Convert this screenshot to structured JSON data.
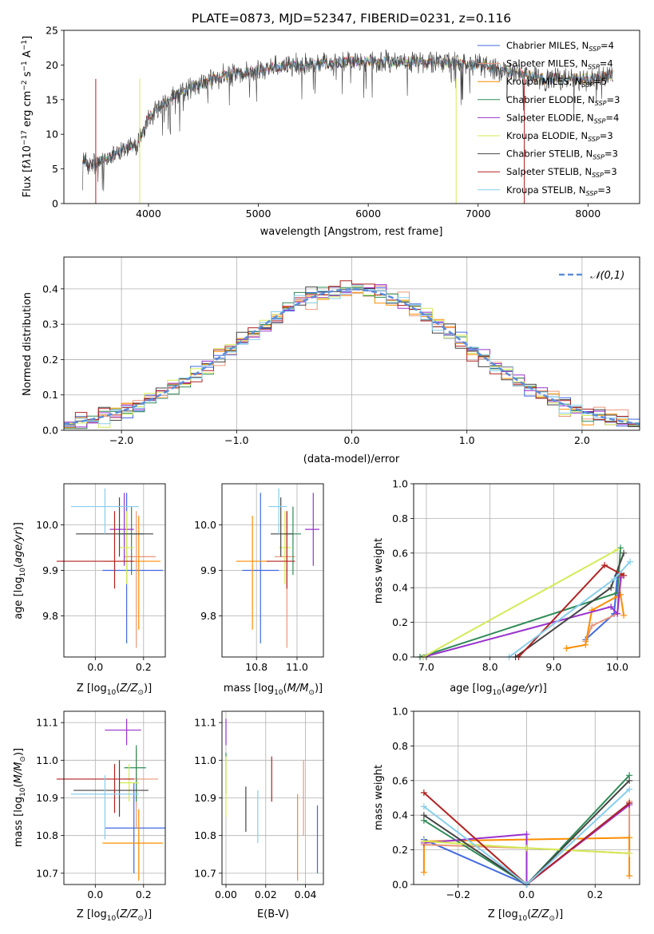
{
  "title": "PLATE=0873, MJD=52347, FIBERID=0231, z=0.116",
  "colors": {
    "chabrier_miles": "#4169e1",
    "salpeter_miles": "#e9967a",
    "kroupa_miles": "#ff8c00",
    "chabrier_elodie": "#2e8b57",
    "salpeter_elodie": "#9932cc",
    "kroupa_elodie": "#d4ea55",
    "chabrier_stelib": "#444444",
    "salpeter_stelib": "#b22222",
    "kroupa_stelib": "#87ceeb",
    "normal": "#5b8ddb",
    "grid": "#b0b0b0"
  },
  "legend": {
    "spectrum": [
      "Chabrier MILES, N_SSP=4",
      "Salpeter MILES, N_SSP=4",
      "Kroupa MILES, N_SSP=5",
      "Chabrier ELODIE, N_SSP=3",
      "Salpeter ELODIE, N_SSP=4",
      "Kroupa ELODIE, N_SSP=3",
      "Chabrier STELIB, N_SSP=3",
      "Salpeter STELIB, N_SSP=3",
      "Kroupa STELIB, N_SSP=3"
    ],
    "histogram": "𝒩(0,1)"
  },
  "chart_data": [
    {
      "type": "line",
      "title": "PLATE=0873, MJD=52347, FIBERID=0231, z=0.116",
      "xlabel": "wavelength [Angstrom, rest frame]",
      "ylabel": "Flux [f_λ 10^-17 erg cm^-2 s^-1 A^-1]",
      "xlim": [
        3230,
        8470
      ],
      "ylim": [
        0,
        25
      ],
      "xticks": [
        4000,
        5000,
        6000,
        7000,
        8000
      ],
      "yticks": [
        0,
        5,
        10,
        15,
        20,
        25
      ],
      "legend_position": "right",
      "spectrum_shape": {
        "x": [
          3400,
          3500,
          3600,
          3800,
          3900,
          4000,
          4100,
          4300,
          4500,
          4700,
          4900,
          5100,
          5300,
          5500,
          5800,
          6000,
          6300,
          6600,
          7000,
          7300,
          7600,
          8000,
          8200
        ],
        "y": [
          6,
          5.5,
          6.5,
          8,
          8.5,
          12.5,
          14,
          16,
          17.5,
          18.5,
          19,
          19.5,
          20,
          20,
          20.5,
          20.5,
          20.5,
          20.5,
          20,
          19,
          18,
          18,
          18.5
        ]
      }
    },
    {
      "type": "bar",
      "xlabel": "(data-model)/error",
      "ylabel": "Normed distribution",
      "xlim": [
        -2.5,
        2.5
      ],
      "ylim": [
        0,
        0.49
      ],
      "xticks": [
        -2,
        -1,
        0,
        1,
        2
      ],
      "yticks": [
        0.0,
        0.1,
        0.2,
        0.3,
        0.4
      ],
      "bin_width": 0.1,
      "series_name": "𝒩(0,1)",
      "legend_position": "upper right"
    },
    {
      "type": "scatter",
      "xlabel": "Z [log10(Z/Z⊙)]",
      "ylabel": "age [log10(age/yr)]",
      "xlim": [
        -0.13,
        0.29
      ],
      "ylim": [
        9.71,
        10.09
      ],
      "xticks": [
        0.0,
        0.2
      ],
      "yticks": [
        9.8,
        9.9,
        10.0
      ],
      "points": [
        {
          "x": 0.13,
          "y": 9.9,
          "xerr": [
            0.1,
            0.15
          ],
          "yerr": [
            0.16,
            0.17
          ],
          "c": "chabrier_miles"
        },
        {
          "x": 0.17,
          "y": 9.93,
          "xerr": [
            0.05,
            0.08
          ],
          "yerr": [
            0.2,
            0.1
          ],
          "c": "salpeter_miles"
        },
        {
          "x": 0.18,
          "y": 9.92,
          "xerr": [
            0.15,
            0.09
          ],
          "yerr": [
            0.15,
            0.1
          ],
          "c": "kroupa_miles"
        },
        {
          "x": 0.15,
          "y": 9.98,
          "xerr": [
            0.05,
            0.05
          ],
          "yerr": [
            0.09,
            0.06
          ],
          "c": "chabrier_elodie"
        },
        {
          "x": 0.12,
          "y": 9.99,
          "xerr": [
            0.06,
            0.04
          ],
          "yerr": [
            0.08,
            0.08
          ],
          "c": "salpeter_elodie"
        },
        {
          "x": 0.13,
          "y": 9.95,
          "xerr": [
            0.03,
            0.03
          ],
          "yerr": [
            0.08,
            0.08
          ],
          "c": "kroupa_elodie"
        },
        {
          "x": 0.1,
          "y": 9.98,
          "xerr": [
            0.18,
            0.14
          ],
          "yerr": [
            0.05,
            0.08
          ],
          "c": "chabrier_stelib"
        },
        {
          "x": 0.08,
          "y": 9.92,
          "xerr": [
            0.24,
            0.08
          ],
          "yerr": [
            0.06,
            0.11
          ],
          "c": "salpeter_stelib"
        },
        {
          "x": 0.04,
          "y": 10.04,
          "xerr": [
            0.14,
            0.14
          ],
          "yerr": [
            0.06,
            0.04
          ],
          "c": "kroupa_stelib"
        }
      ]
    },
    {
      "type": "scatter",
      "xlabel": "mass [log10(M/M⊙)]",
      "xlim": [
        10.63,
        11.13
      ],
      "ylim": [
        9.71,
        10.09
      ],
      "xticks": [
        10.8,
        11.0
      ],
      "yticks": [
        9.8,
        9.9,
        10.0
      ],
      "points": [
        {
          "x": 10.82,
          "y": 9.9,
          "xerr": [
            0.09,
            0.09
          ],
          "yerr": [
            0.16,
            0.17
          ],
          "c": "chabrier_miles"
        },
        {
          "x": 10.95,
          "y": 9.93,
          "xerr": [
            0.06,
            0.04
          ],
          "yerr": [
            0.2,
            0.1
          ],
          "c": "salpeter_miles"
        },
        {
          "x": 10.78,
          "y": 9.92,
          "xerr": [
            0.08,
            0.08
          ],
          "yerr": [
            0.15,
            0.1
          ],
          "c": "kroupa_miles"
        },
        {
          "x": 10.98,
          "y": 9.98,
          "xerr": [
            0.04,
            0.04
          ],
          "yerr": [
            0.09,
            0.06
          ],
          "c": "chabrier_elodie"
        },
        {
          "x": 11.08,
          "y": 9.99,
          "xerr": [
            0.04,
            0.03
          ],
          "yerr": [
            0.08,
            0.08
          ],
          "c": "salpeter_elodie"
        },
        {
          "x": 10.94,
          "y": 9.95,
          "xerr": [
            0.03,
            0.03
          ],
          "yerr": [
            0.08,
            0.08
          ],
          "c": "kroupa_elodie"
        },
        {
          "x": 10.92,
          "y": 9.98,
          "xerr": [
            0.05,
            0.06
          ],
          "yerr": [
            0.05,
            0.08
          ],
          "c": "chabrier_stelib"
        },
        {
          "x": 10.95,
          "y": 9.92,
          "xerr": [
            0.1,
            0.04
          ],
          "yerr": [
            0.06,
            0.11
          ],
          "c": "salpeter_stelib"
        },
        {
          "x": 10.91,
          "y": 10.04,
          "xerr": [
            0.05,
            0.04
          ],
          "yerr": [
            0.06,
            0.04
          ],
          "c": "kroupa_stelib"
        }
      ]
    },
    {
      "type": "line",
      "xlabel": "age [log10(age/yr)]",
      "ylabel": "mass weight",
      "xlim": [
        6.8,
        10.35
      ],
      "ylim": [
        0,
        1.0
      ],
      "xticks": [
        7,
        8,
        9,
        10
      ],
      "yticks": [
        0.0,
        0.2,
        0.4,
        0.6,
        0.8,
        1.0
      ],
      "series": [
        {
          "c": "chabrier_miles",
          "x": [
            9.5,
            9.95,
            10.0
          ],
          "y": [
            0.1,
            0.25,
            0.47
          ]
        },
        {
          "c": "salpeter_miles",
          "x": [
            9.5,
            9.6,
            10.0,
            10.07
          ],
          "y": [
            0.09,
            0.18,
            0.25,
            0.48
          ]
        },
        {
          "c": "kroupa_miles",
          "x": [
            9.2,
            9.5,
            9.6,
            10.0,
            10.05,
            10.1
          ],
          "y": [
            0.05,
            0.07,
            0.27,
            0.35,
            0.36,
            0.24
          ]
        },
        {
          "c": "chabrier_elodie",
          "x": [
            6.9,
            10.0,
            10.05
          ],
          "y": [
            0.0,
            0.37,
            0.63
          ]
        },
        {
          "c": "salpeter_elodie",
          "x": [
            6.95,
            9.9,
            10.0,
            10.05
          ],
          "y": [
            0.0,
            0.29,
            0.25,
            0.46
          ]
        },
        {
          "c": "kroupa_elodie",
          "x": [
            6.95,
            10.0
          ],
          "y": [
            0.0,
            0.62
          ]
        },
        {
          "c": "chabrier_stelib",
          "x": [
            8.4,
            9.9,
            10.1
          ],
          "y": [
            0.0,
            0.4,
            0.6
          ]
        },
        {
          "c": "salpeter_stelib",
          "x": [
            8.45,
            9.8,
            10.05,
            10.1
          ],
          "y": [
            0.0,
            0.53,
            0.48,
            0.47
          ]
        },
        {
          "c": "kroupa_stelib",
          "x": [
            8.3,
            9.95,
            10.2
          ],
          "y": [
            0.0,
            0.45,
            0.55
          ]
        }
      ]
    },
    {
      "type": "scatter",
      "xlabel": "Z [log10(Z/Z⊙)]",
      "ylabel": "mass [log10(M/M⊙)]",
      "xlim": [
        -0.13,
        0.29
      ],
      "ylim": [
        10.67,
        11.13
      ],
      "xticks": [
        0.0,
        0.2
      ],
      "yticks": [
        10.7,
        10.8,
        10.9,
        11.0,
        11.1
      ],
      "points": [
        {
          "x": 0.16,
          "y": 10.82,
          "xerr": [
            0.12,
            0.13
          ],
          "yerr": [
            0.12,
            0.12
          ],
          "c": "chabrier_miles"
        },
        {
          "x": 0.17,
          "y": 10.95,
          "xerr": [
            0.05,
            0.09
          ],
          "yerr": [
            0.13,
            0.08
          ],
          "c": "salpeter_miles"
        },
        {
          "x": 0.18,
          "y": 10.78,
          "xerr": [
            0.15,
            0.1
          ],
          "yerr": [
            0.1,
            0.09
          ],
          "c": "kroupa_miles"
        },
        {
          "x": 0.17,
          "y": 10.98,
          "xerr": [
            0.05,
            0.04
          ],
          "yerr": [
            0.09,
            0.06
          ],
          "c": "chabrier_elodie"
        },
        {
          "x": 0.13,
          "y": 11.08,
          "xerr": [
            0.09,
            0.06
          ],
          "yerr": [
            0.04,
            0.03
          ],
          "c": "salpeter_elodie"
        },
        {
          "x": 0.14,
          "y": 10.94,
          "xerr": [
            0.04,
            0.04
          ],
          "yerr": [
            0.05,
            0.05
          ],
          "c": "kroupa_elodie"
        },
        {
          "x": 0.1,
          "y": 10.92,
          "xerr": [
            0.19,
            0.12
          ],
          "yerr": [
            0.07,
            0.08
          ],
          "c": "chabrier_stelib"
        },
        {
          "x": 0.08,
          "y": 10.95,
          "xerr": [
            0.24,
            0.08
          ],
          "yerr": [
            0.09,
            0.04
          ],
          "c": "salpeter_stelib"
        },
        {
          "x": 0.04,
          "y": 10.91,
          "xerr": [
            0.14,
            0.14
          ],
          "yerr": [
            0.12,
            0.05
          ],
          "c": "kroupa_stelib"
        }
      ]
    },
    {
      "type": "scatter",
      "xlabel": "E(B-V)",
      "xlim": [
        -0.002,
        0.049
      ],
      "ylim": [
        10.67,
        11.13
      ],
      "xticks": [
        0.0,
        0.02,
        0.04
      ],
      "yticks": [
        10.7,
        10.8,
        10.9,
        11.0,
        11.1
      ],
      "points": [
        {
          "x": 0.046,
          "y": 10.79,
          "yerr": [
            0.09,
            0.09
          ],
          "c": "chabrier_miles"
        },
        {
          "x": 0.039,
          "y": 10.9,
          "yerr": [
            0.1,
            0.1
          ],
          "c": "salpeter_miles"
        },
        {
          "x": 0.036,
          "y": 10.8,
          "yerr": [
            0.12,
            0.11
          ],
          "c": "kroupa_miles"
        },
        {
          "x": 0.0,
          "y": 10.96,
          "yerr": [
            0.05,
            0.06
          ],
          "c": "chabrier_elodie"
        },
        {
          "x": 0.0,
          "y": 11.08,
          "yerr": [
            0.04,
            0.03
          ],
          "c": "salpeter_elodie"
        },
        {
          "x": 0.0,
          "y": 10.93,
          "yerr": [
            0.08,
            0.08
          ],
          "c": "kroupa_elodie"
        },
        {
          "x": 0.01,
          "y": 10.87,
          "yerr": [
            0.06,
            0.06
          ],
          "c": "chabrier_stelib"
        },
        {
          "x": 0.023,
          "y": 10.95,
          "yerr": [
            0.06,
            0.06
          ],
          "c": "salpeter_stelib"
        },
        {
          "x": 0.016,
          "y": 10.85,
          "yerr": [
            0.07,
            0.07
          ],
          "c": "kroupa_stelib"
        }
      ]
    },
    {
      "type": "line",
      "xlabel": "Z [log10(Z/Z⊙)]",
      "ylabel": "mass weight",
      "xlim": [
        -0.33,
        0.33
      ],
      "ylim": [
        0,
        1.0
      ],
      "xticks": [
        -0.2,
        0.0,
        0.2
      ],
      "yticks": [
        0.0,
        0.2,
        0.4,
        0.6,
        0.8,
        1.0
      ],
      "series": [
        {
          "c": "chabrier_miles",
          "x": [
            -0.3,
            0.0,
            0.3
          ],
          "y": [
            0.26,
            0.0,
            0.47
          ]
        },
        {
          "c": "salpeter_miles",
          "x": [
            -0.3,
            0.0,
            0.3,
            0.3
          ],
          "y": [
            0.23,
            0.21,
            0.18,
            0.48
          ]
        },
        {
          "c": "kroupa_miles",
          "x": [
            -0.3,
            -0.3,
            0.0,
            0.3,
            0.3
          ],
          "y": [
            0.07,
            0.25,
            0.26,
            0.27,
            0.05
          ]
        },
        {
          "c": "chabrier_elodie",
          "x": [
            -0.3,
            0.0,
            0.3
          ],
          "y": [
            0.37,
            0.0,
            0.63
          ]
        },
        {
          "c": "salpeter_elodie",
          "x": [
            -0.3,
            0.0,
            0.0,
            0.3
          ],
          "y": [
            0.24,
            0.29,
            0.0,
            0.46
          ]
        },
        {
          "c": "kroupa_elodie",
          "x": [
            -0.3,
            0.0,
            0.3
          ],
          "y": [
            0.25,
            0.21,
            0.18
          ]
        },
        {
          "c": "chabrier_stelib",
          "x": [
            -0.3,
            0.0,
            0.3
          ],
          "y": [
            0.4,
            0.0,
            0.6
          ]
        },
        {
          "c": "salpeter_stelib",
          "x": [
            -0.3,
            0.0,
            0.3
          ],
          "y": [
            0.53,
            0.0,
            0.47
          ]
        },
        {
          "c": "kroupa_stelib",
          "x": [
            -0.3,
            0.0,
            0.3
          ],
          "y": [
            0.45,
            0.0,
            0.55
          ]
        }
      ]
    }
  ]
}
